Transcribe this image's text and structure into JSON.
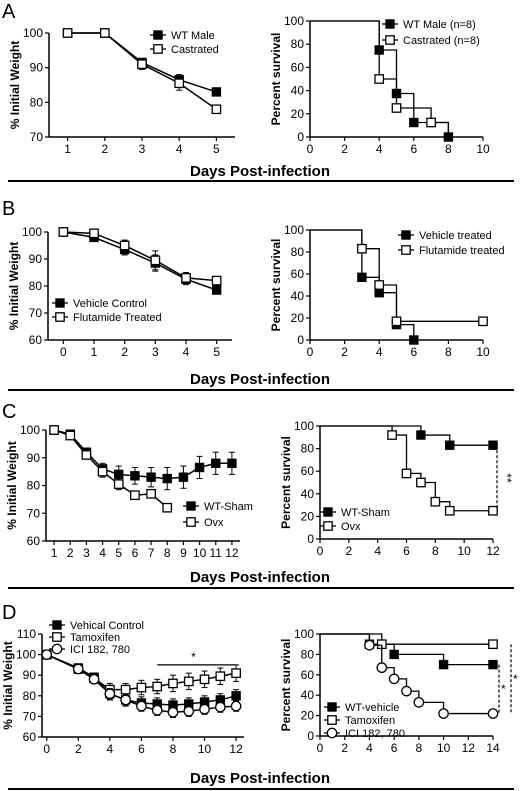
{
  "xlabel": "Days Post-infection",
  "panels": [
    {
      "letter": "A",
      "charts": [
        {
          "type": "line",
          "ylabel": "% Initial Weight",
          "xlim": [
            0.5,
            5.5
          ],
          "ylim": [
            70,
            100
          ],
          "xticks": [
            1,
            2,
            3,
            4,
            5
          ],
          "yticks": [
            70,
            80,
            90,
            100
          ],
          "legend_position": "top-right",
          "series": [
            {
              "name": "WT Male",
              "marker": "filled-square",
              "x": [
                1,
                2,
                3,
                4,
                5
              ],
              "y": [
                100,
                100,
                91.5,
                86.5,
                83
              ],
              "err": [
                0,
                0,
                1,
                1.5,
                0.5
              ]
            },
            {
              "name": "Castrated",
              "marker": "open-square",
              "x": [
                1,
                2,
                3,
                4,
                5
              ],
              "y": [
                100,
                100,
                91,
                85.5,
                78
              ],
              "err": [
                0,
                0,
                1.5,
                2,
                0.5
              ]
            }
          ]
        },
        {
          "type": "line",
          "ylabel": "Percent survival",
          "xlim": [
            0,
            10
          ],
          "ylim": [
            0,
            100
          ],
          "xticks": [
            0,
            2,
            4,
            6,
            8,
            10
          ],
          "yticks": [
            0,
            20,
            40,
            60,
            80,
            100
          ],
          "legend_position": "top-right",
          "series": [
            {
              "name": "WT Male (n=8)",
              "marker": "filled-square",
              "step": true,
              "x": [
                0,
                4,
                5,
                6,
                8
              ],
              "y": [
                100,
                75,
                37.5,
                12.5,
                0
              ],
              "markers_x": [
                4,
                5,
                6,
                8
              ],
              "markers_y": [
                75,
                37.5,
                12.5,
                0
              ]
            },
            {
              "name": "Castrated (n=8)",
              "marker": "open-square",
              "step": true,
              "x": [
                0,
                4,
                5,
                7,
                8
              ],
              "y": [
                100,
                50,
                25,
                12.5,
                0
              ],
              "markers_x": [
                4,
                5,
                7
              ],
              "markers_y": [
                50,
                25,
                12.5
              ]
            }
          ]
        }
      ]
    },
    {
      "letter": "B",
      "charts": [
        {
          "type": "line",
          "ylabel": "% Initial Weight",
          "xlim": [
            -0.5,
            5.5
          ],
          "ylim": [
            60,
            100
          ],
          "xticks": [
            0,
            1,
            2,
            3,
            4,
            5
          ],
          "yticks": [
            60,
            70,
            80,
            90,
            100
          ],
          "legend_position": "bottom-left",
          "series": [
            {
              "name": "Vehicle Control",
              "marker": "filled-square",
              "x": [
                0,
                1,
                2,
                3,
                4,
                5
              ],
              "y": [
                100,
                98,
                93.5,
                88.5,
                82.5,
                78.5
              ],
              "err": [
                0,
                1.5,
                2,
                3,
                2,
                1
              ]
            },
            {
              "name": "Flutamide Treated",
              "marker": "open-square",
              "x": [
                0,
                1,
                2,
                3,
                4,
                5
              ],
              "y": [
                100,
                99.5,
                95,
                89.5,
                83,
                82
              ],
              "err": [
                0,
                1.5,
                2,
                3.5,
                2,
                1
              ]
            }
          ]
        },
        {
          "type": "line",
          "ylabel": "Percent survival",
          "xlim": [
            0,
            10
          ],
          "ylim": [
            0,
            100
          ],
          "xticks": [
            0,
            2,
            4,
            6,
            8,
            10
          ],
          "yticks": [
            0,
            20,
            40,
            60,
            80,
            100
          ],
          "legend_position": "top-right",
          "series": [
            {
              "name": "Vehicle treated",
              "marker": "filled-square",
              "step": true,
              "x": [
                0,
                3,
                4,
                5,
                6
              ],
              "y": [
                100,
                57,
                43,
                14,
                0
              ],
              "markers_x": [
                3,
                4,
                5,
                6
              ],
              "markers_y": [
                57,
                43,
                14,
                0
              ]
            },
            {
              "name": "Flutamide treated",
              "marker": "open-square",
              "step": true,
              "x": [
                0,
                3,
                4,
                5,
                10
              ],
              "y": [
                100,
                83,
                50,
                17,
                17
              ],
              "markers_x": [
                3,
                4,
                5,
                10
              ],
              "markers_y": [
                83,
                50,
                17,
                17
              ]
            }
          ]
        }
      ]
    },
    {
      "letter": "C",
      "charts": [
        {
          "type": "line",
          "ylabel": "% Initial Weight",
          "xlim": [
            0.5,
            12.5
          ],
          "ylim": [
            60,
            100
          ],
          "xticks": [
            1,
            2,
            3,
            4,
            5,
            6,
            7,
            8,
            9,
            10,
            11,
            12
          ],
          "yticks": [
            60,
            70,
            80,
            90,
            100
          ],
          "legend_position": "bottom-right",
          "series": [
            {
              "name": "WT-Sham",
              "marker": "filled-square",
              "x": [
                1,
                2,
                3,
                4,
                5,
                6,
                7,
                8,
                9,
                10,
                11,
                12
              ],
              "y": [
                100,
                98.5,
                92,
                86,
                84,
                83.5,
                83,
                82.5,
                83,
                86.5,
                88,
                88
              ],
              "err": [
                0,
                1,
                1.5,
                2,
                3,
                3,
                3.5,
                4,
                4,
                4,
                4,
                4
              ]
            },
            {
              "name": "Ovx",
              "marker": "open-square",
              "x": [
                1,
                2,
                3,
                4,
                5,
                6,
                7,
                8
              ],
              "y": [
                100,
                98,
                91,
                85,
                80.5,
                76.5,
                77,
                72
              ],
              "err": [
                0,
                1,
                1.5,
                2,
                2,
                1.5,
                1.5,
                0.5
              ]
            }
          ]
        },
        {
          "type": "line",
          "ylabel": "Percent survival",
          "xlim": [
            0,
            12
          ],
          "ylim": [
            0,
            100
          ],
          "xticks": [
            0,
            2,
            4,
            6,
            8,
            10,
            12
          ],
          "yticks": [
            0,
            20,
            40,
            60,
            80,
            100
          ],
          "legend_position": "bottom-left",
          "annotation": "**",
          "series": [
            {
              "name": "WT-Sham",
              "marker": "filled-square",
              "step": true,
              "x": [
                0,
                7,
                9,
                12
              ],
              "y": [
                100,
                92,
                83,
                83
              ],
              "markers_x": [
                7,
                9,
                12
              ],
              "markers_y": [
                92,
                83,
                83
              ]
            },
            {
              "name": "Ovx",
              "marker": "open-square",
              "step": true,
              "x": [
                0,
                5,
                6,
                7,
                8,
                9,
                12
              ],
              "y": [
                100,
                92,
                58,
                50,
                33,
                25,
                25
              ],
              "markers_x": [
                5,
                6,
                7,
                8,
                9,
                12
              ],
              "markers_y": [
                92,
                58,
                50,
                33,
                25,
                25
              ]
            }
          ]
        }
      ]
    },
    {
      "letter": "D",
      "charts": [
        {
          "type": "line",
          "ylabel": "% Initial Weight",
          "xlim": [
            -0.3,
            12.5
          ],
          "ylim": [
            60,
            110
          ],
          "xticks": [
            0,
            2,
            4,
            6,
            8,
            10,
            12
          ],
          "yticks": [
            60,
            70,
            80,
            90,
            100,
            110
          ],
          "legend_position": "top-left",
          "annotation": "*",
          "series": [
            {
              "name": "Vehical Control",
              "marker": "filled-square",
              "x": [
                0,
                2,
                3,
                4,
                5,
                6,
                7,
                8,
                9,
                10,
                11,
                12
              ],
              "y": [
                100,
                93.5,
                89,
                81,
                78,
                76.5,
                76,
                75.5,
                76,
                77,
                78,
                80
              ],
              "err": [
                0,
                2,
                2,
                3,
                3,
                3,
                3,
                3,
                3,
                3,
                3,
                3
              ]
            },
            {
              "name": "Tamoxifen",
              "marker": "open-square",
              "x": [
                0,
                2,
                3,
                4,
                5,
                6,
                7,
                8,
                9,
                10,
                11,
                12
              ],
              "y": [
                100,
                93,
                88.5,
                83,
                83,
                84,
                84.5,
                86,
                87,
                88,
                89.5,
                91
              ],
              "err": [
                0,
                2,
                2,
                3,
                3,
                3.5,
                3.5,
                4,
                4,
                4,
                4,
                4
              ]
            },
            {
              "name": "ICI 182, 780",
              "marker": "open-circle",
              "x": [
                0,
                2,
                3,
                4,
                5,
                6,
                7,
                8,
                9,
                10,
                11,
                12
              ],
              "y": [
                100,
                93,
                88,
                81,
                78,
                75,
                73,
                72,
                72.5,
                73.5,
                74.5,
                75
              ],
              "err": [
                0,
                2,
                2,
                2.5,
                2.5,
                2.5,
                2.5,
                2.5,
                2.5,
                2.5,
                2.5,
                2.5
              ]
            }
          ]
        },
        {
          "type": "line",
          "ylabel": "Percent survival",
          "xlim": [
            0,
            14
          ],
          "ylim": [
            0,
            100
          ],
          "xticks": [
            0,
            2,
            4,
            6,
            8,
            10,
            12,
            14
          ],
          "yticks": [
            0,
            20,
            40,
            60,
            80,
            100
          ],
          "legend_position": "bottom-left",
          "annotation": "*",
          "annotation2": "*",
          "series": [
            {
              "name": "WT-vehicle",
              "marker": "filled-square",
              "step": true,
              "x": [
                0,
                4,
                6,
                10,
                14
              ],
              "y": [
                100,
                90,
                80,
                70,
                70
              ],
              "markers_x": [
                4,
                6,
                10,
                14
              ],
              "markers_y": [
                90,
                80,
                70,
                70
              ]
            },
            {
              "name": "Tamoxifen",
              "marker": "open-square",
              "step": true,
              "x": [
                0,
                5,
                14
              ],
              "y": [
                100,
                90,
                90
              ],
              "markers_x": [
                5,
                14
              ],
              "markers_y": [
                90,
                90
              ]
            },
            {
              "name": "ICI 182, 780",
              "marker": "open-circle",
              "step": true,
              "x": [
                0,
                4,
                5,
                6,
                7,
                8,
                10,
                14
              ],
              "y": [
                100,
                89,
                67,
                56,
                44,
                33,
                22,
                22
              ],
              "markers_x": [
                4,
                5,
                6,
                7,
                8,
                10,
                14
              ],
              "markers_y": [
                89,
                67,
                56,
                44,
                33,
                22,
                22
              ]
            }
          ]
        }
      ]
    }
  ]
}
